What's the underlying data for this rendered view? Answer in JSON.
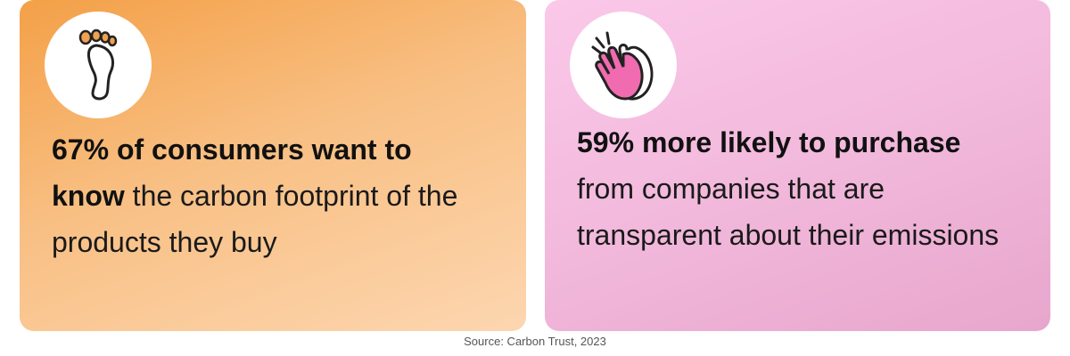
{
  "cards": [
    {
      "highlight": "67% of consumers want to know",
      "detail": "the carbon footprint of the products they buy"
    },
    {
      "highlight": "59% more likely to purchase",
      "detail": "from companies that are transparent about their emissions"
    }
  ],
  "source": "Source: Carbon Trust, 2023"
}
